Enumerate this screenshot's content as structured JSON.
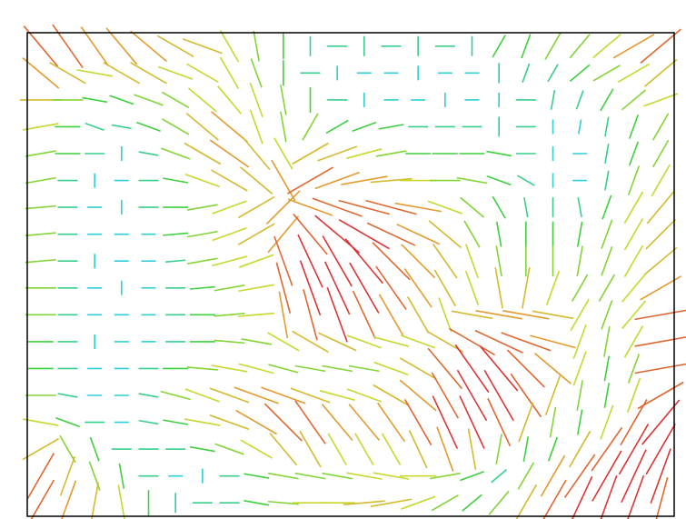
{
  "chart_data": {
    "type": "quiver",
    "clim": [
      0,
      10
    ],
    "colormap": [
      "#2a66dc",
      "#2ecfd6",
      "#3fcf3f",
      "#c6d82e",
      "#e39a2e",
      "#db3434"
    ],
    "magnitude": [
      [
        9,
        9,
        8,
        8,
        8,
        7,
        7,
        6,
        5,
        4,
        3,
        3,
        3,
        3,
        3,
        3,
        3,
        4,
        4,
        5,
        5,
        6,
        8,
        9
      ],
      [
        8,
        7,
        6,
        7,
        7,
        6,
        6,
        6,
        5,
        4,
        3,
        2,
        2,
        2,
        2,
        2,
        2,
        3,
        3,
        3,
        4,
        5,
        6,
        7
      ],
      [
        7,
        5,
        4,
        4,
        5,
        5,
        6,
        6,
        6,
        5,
        4,
        3,
        2,
        2,
        2,
        2,
        2,
        2,
        3,
        3,
        3,
        4,
        5,
        6
      ],
      [
        6,
        4,
        3,
        3,
        4,
        5,
        7,
        8,
        6,
        5,
        5,
        4,
        4,
        4,
        3,
        3,
        3,
        3,
        3,
        2,
        2,
        3,
        4,
        5
      ],
      [
        5,
        4,
        3,
        2,
        3,
        5,
        7,
        8,
        7,
        6,
        7,
        7,
        6,
        5,
        4,
        4,
        4,
        4,
        3,
        2,
        2,
        3,
        4,
        5
      ],
      [
        5,
        3,
        2,
        2,
        3,
        4,
        6,
        7,
        7,
        8,
        9,
        8,
        8,
        7,
        6,
        5,
        5,
        4,
        3,
        2,
        2,
        3,
        5,
        6
      ],
      [
        5,
        3,
        2,
        2,
        3,
        4,
        5,
        6,
        7,
        8,
        8,
        9,
        9,
        9,
        8,
        6,
        5,
        4,
        3,
        3,
        3,
        4,
        6,
        7
      ],
      [
        5,
        3,
        2,
        2,
        2,
        4,
        5,
        6,
        7,
        8,
        9,
        10,
        10,
        9,
        8,
        7,
        5,
        4,
        4,
        4,
        4,
        5,
        6,
        7
      ],
      [
        5,
        3,
        2,
        2,
        2,
        3,
        5,
        6,
        6,
        9,
        10,
        10,
        10,
        9,
        8,
        7,
        6,
        5,
        5,
        5,
        5,
        5,
        6,
        7
      ],
      [
        5,
        3,
        2,
        2,
        2,
        3,
        4,
        5,
        6,
        9,
        10,
        10,
        10,
        9,
        8,
        7,
        6,
        7,
        7,
        6,
        5,
        5,
        6,
        8
      ],
      [
        5,
        3,
        2,
        2,
        2,
        3,
        4,
        5,
        6,
        8,
        9,
        10,
        9,
        8,
        7,
        6,
        7,
        8,
        8,
        7,
        6,
        5,
        6,
        9
      ],
      [
        4,
        3,
        2,
        2,
        2,
        3,
        4,
        5,
        5,
        6,
        7,
        7,
        6,
        6,
        6,
        7,
        9,
        9,
        9,
        8,
        6,
        5,
        6,
        9
      ],
      [
        4,
        3,
        2,
        2,
        3,
        4,
        5,
        6,
        6,
        5,
        5,
        5,
        5,
        6,
        7,
        9,
        10,
        10,
        9,
        8,
        6,
        4,
        5,
        9
      ],
      [
        5,
        3,
        2,
        2,
        3,
        5,
        6,
        7,
        8,
        8,
        7,
        6,
        6,
        7,
        8,
        9,
        10,
        10,
        9,
        7,
        5,
        4,
        6,
        9
      ],
      [
        6,
        4,
        3,
        2,
        3,
        4,
        6,
        7,
        8,
        9,
        9,
        8,
        8,
        8,
        9,
        10,
        10,
        9,
        7,
        5,
        4,
        6,
        9,
        10
      ],
      [
        7,
        5,
        4,
        3,
        3,
        3,
        4,
        5,
        6,
        7,
        7,
        6,
        6,
        6,
        7,
        8,
        7,
        5,
        4,
        4,
        7,
        9,
        10,
        10
      ],
      [
        9,
        7,
        5,
        4,
        3,
        2,
        2,
        3,
        4,
        5,
        5,
        5,
        6,
        6,
        6,
        5,
        4,
        3,
        5,
        8,
        9,
        10,
        10,
        10
      ],
      [
        9,
        8,
        7,
        6,
        4,
        3,
        3,
        3,
        4,
        5,
        6,
        6,
        7,
        7,
        6,
        5,
        4,
        5,
        7,
        9,
        10,
        10,
        10,
        9
      ]
    ],
    "angle": [
      [
        50,
        55,
        55,
        50,
        40,
        30,
        20,
        60,
        80,
        90,
        90,
        0,
        90,
        0,
        90,
        0,
        90,
        -60,
        -70,
        -60,
        -50,
        -40,
        -30,
        -40
      ],
      [
        40,
        30,
        10,
        30,
        30,
        20,
        30,
        60,
        70,
        90,
        0,
        90,
        0,
        0,
        90,
        0,
        0,
        90,
        -70,
        -60,
        -40,
        -30,
        -30,
        -40
      ],
      [
        0,
        0,
        10,
        20,
        20,
        30,
        40,
        50,
        70,
        80,
        90,
        0,
        90,
        0,
        0,
        90,
        0,
        90,
        0,
        -80,
        -70,
        -60,
        -40,
        -20
      ],
      [
        -10,
        0,
        20,
        10,
        20,
        30,
        40,
        40,
        70,
        80,
        -60,
        -30,
        -20,
        -10,
        0,
        0,
        0,
        90,
        0,
        90,
        -80,
        -80,
        -70,
        -60
      ],
      [
        -10,
        0,
        0,
        90,
        10,
        20,
        30,
        35,
        50,
        60,
        -30,
        -20,
        -15,
        -10,
        0,
        0,
        0,
        10,
        0,
        90,
        0,
        -80,
        -70,
        -60
      ],
      [
        -10,
        0,
        90,
        0,
        0,
        10,
        20,
        30,
        40,
        60,
        -30,
        -20,
        -10,
        -5,
        0,
        0,
        10,
        20,
        30,
        90,
        0,
        -80,
        -70,
        -60
      ],
      [
        -5,
        0,
        0,
        90,
        0,
        0,
        -10,
        -20,
        -30,
        -45,
        20,
        20,
        15,
        15,
        10,
        20,
        40,
        60,
        80,
        90,
        80,
        -70,
        -60,
        -50
      ],
      [
        -5,
        0,
        0,
        0,
        0,
        -5,
        -10,
        -20,
        -30,
        -50,
        50,
        40,
        30,
        25,
        25,
        40,
        60,
        80,
        90,
        90,
        -80,
        -70,
        -60,
        -45
      ],
      [
        -5,
        0,
        90,
        0,
        0,
        -5,
        -10,
        -15,
        -20,
        70,
        65,
        60,
        50,
        45,
        45,
        55,
        70,
        80,
        90,
        90,
        -80,
        -70,
        -60,
        -40
      ],
      [
        0,
        0,
        0,
        90,
        0,
        0,
        -5,
        -10,
        -10,
        75,
        70,
        65,
        60,
        55,
        55,
        60,
        70,
        80,
        -80,
        -70,
        -60,
        -60,
        -50,
        -30
      ],
      [
        0,
        0,
        0,
        0,
        0,
        0,
        0,
        -5,
        -5,
        80,
        75,
        70,
        65,
        60,
        60,
        70,
        10,
        10,
        10,
        10,
        -60,
        -70,
        -50,
        -10
      ],
      [
        0,
        0,
        90,
        0,
        0,
        0,
        0,
        5,
        10,
        30,
        30,
        25,
        20,
        15,
        20,
        30,
        30,
        25,
        20,
        15,
        -70,
        -80,
        -60,
        -10
      ],
      [
        0,
        0,
        0,
        0,
        0,
        0,
        5,
        10,
        15,
        15,
        10,
        10,
        10,
        20,
        30,
        50,
        55,
        50,
        45,
        40,
        -70,
        -80,
        -70,
        -10
      ],
      [
        0,
        10,
        0,
        0,
        10,
        15,
        20,
        20,
        20,
        20,
        20,
        15,
        20,
        30,
        40,
        60,
        60,
        60,
        55,
        -70,
        -80,
        -80,
        -70,
        -30
      ],
      [
        10,
        20,
        0,
        0,
        10,
        10,
        10,
        20,
        30,
        45,
        55,
        50,
        50,
        55,
        60,
        65,
        65,
        65,
        -70,
        -80,
        -80,
        -70,
        -60,
        -50
      ],
      [
        -30,
        60,
        70,
        0,
        0,
        0,
        10,
        20,
        30,
        50,
        60,
        60,
        60,
        60,
        65,
        70,
        80,
        -80,
        -80,
        -70,
        -60,
        -55,
        -60,
        -60
      ],
      [
        -60,
        -70,
        70,
        80,
        0,
        0,
        90,
        0,
        10,
        10,
        10,
        10,
        10,
        10,
        0,
        -10,
        -20,
        -40,
        -60,
        -60,
        -55,
        -60,
        -65,
        -70
      ],
      [
        -60,
        -70,
        -80,
        80,
        90,
        90,
        0,
        0,
        10,
        5,
        0,
        0,
        -5,
        -10,
        -20,
        -30,
        -40,
        -50,
        -60,
        -60,
        -65,
        -70,
        -70,
        -75
      ]
    ]
  }
}
